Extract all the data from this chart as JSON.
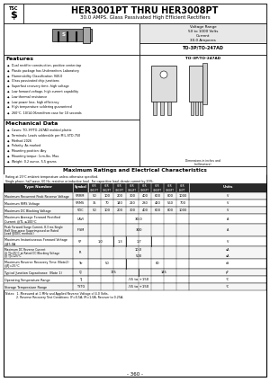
{
  "title_main": "HER3001PT THRU HER3008PT",
  "title_sub": "30.0 AMPS. Glass Passivated High Efficient Rectifiers",
  "voltage_range": "Voltage Range\n50 to 1000 Volts\nCurrent\n30.0 Amperes",
  "package": "TO-3P/TO-247AD",
  "features_title": "Features",
  "features": [
    "Dual rectifier construction, positive center-tap",
    "Plastic package has Underwriters Laboratory",
    "Flammability Classification 94V-0",
    "Glass passivated chip junctions",
    "Superfast recovery time, high voltage",
    "Low forward voltage, high current capability",
    "Low thermal resistance",
    "Low power loss, high efficiency",
    "High temperature soldering guaranteed",
    "260°C, 10/14.06mm/from case for 10 seconds"
  ],
  "mech_title": "Mechanical Data",
  "mech": [
    "Cases: TO-3P/TO-247AD molded plastic",
    "Terminals: Leads solderable per MIL-STD-750",
    "Method 2026",
    "Polarity: As marked",
    "Mounting position: Any",
    "Mounting torque: 1cm-lbs. Max.",
    "Weight: 0.2 ounce, 5.5 grams"
  ],
  "table_title": "Maximum Ratings and Electrical Characteristics",
  "table_note1": "Rating at 25°C ambient temperature unless otherwise specified.",
  "table_note2": "Single phase, half wave, 60 Hz, resistive or inductive load.",
  "table_note3": "For capacitive load, derate current by 20%.",
  "notes": [
    "Notes:  1. Measured at 1 MHz and Applied Reverse Voltage of 4.0 Volts.",
    "            2. Reverse Recovery Test Conditions: IF=0.5A, IR=1.0A, Recover to 0.25A."
  ],
  "page_num": "- 360 -",
  "bg_color": "#ffffff"
}
